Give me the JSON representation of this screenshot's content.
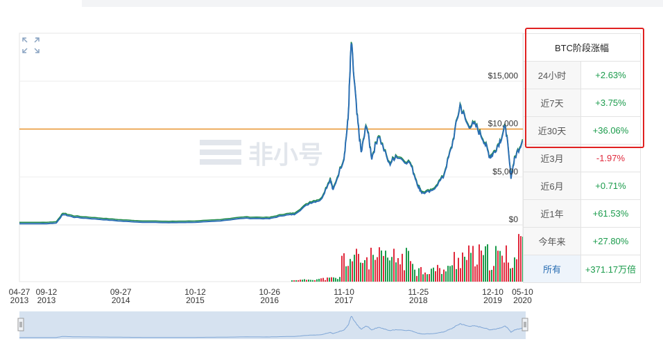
{
  "chart_data": {
    "type": "line",
    "title": "",
    "xlabel": "",
    "ylabel": "",
    "ylim": [
      0,
      20000
    ],
    "y_ticks": [
      "$0",
      "$5,000",
      "$10,000",
      "$15,000"
    ],
    "y_tick_values": [
      0,
      5000,
      10000,
      15000
    ],
    "x_ticks": [
      {
        "label_top": "04-27",
        "label_bottom": "2013",
        "date": "2013-04-27"
      },
      {
        "label_top": "09-12",
        "label_bottom": "2013",
        "date": "2013-09-12"
      },
      {
        "label_top": "09-27",
        "label_bottom": "2014",
        "date": "2014-09-27"
      },
      {
        "label_top": "10-12",
        "label_bottom": "2015",
        "date": "2015-10-12"
      },
      {
        "label_top": "10-26",
        "label_bottom": "2016",
        "date": "2016-10-26"
      },
      {
        "label_top": "11-10",
        "label_bottom": "2017",
        "date": "2017-11-10"
      },
      {
        "label_top": "11-25",
        "label_bottom": "2018",
        "date": "2018-11-25"
      },
      {
        "label_top": "12-10",
        "label_bottom": "2019",
        "date": "2019-12-10"
      },
      {
        "label_top": "05-10",
        "label_bottom": "2020",
        "date": "2020-05-10"
      }
    ],
    "reference_line": {
      "value": 10000,
      "color": "#e8922a"
    },
    "series": [
      {
        "color": "#2a6eb3",
        "x": [
          "2013-04-27",
          "2013-09-12",
          "2013-11-01",
          "2013-12-05",
          "2014-02-01",
          "2014-06-01",
          "2014-09-27",
          "2015-01-15",
          "2015-06-01",
          "2015-10-12",
          "2016-02-01",
          "2016-06-15",
          "2016-10-26",
          "2017-01-05",
          "2017-03-01",
          "2017-05-20",
          "2017-07-15",
          "2017-09-01",
          "2017-09-15",
          "2017-11-10",
          "2017-12-01",
          "2017-12-17",
          "2018-01-15",
          "2018-02-06",
          "2018-03-05",
          "2018-04-01",
          "2018-05-05",
          "2018-06-30",
          "2018-08-01",
          "2018-10-15",
          "2018-11-25",
          "2018-12-15",
          "2019-02-01",
          "2019-04-01",
          "2019-05-15",
          "2019-06-26",
          "2019-08-01",
          "2019-09-15",
          "2019-10-26",
          "2019-11-25",
          "2019-12-10",
          "2020-01-15",
          "2020-02-14",
          "2020-03-12",
          "2020-04-01",
          "2020-05-10"
        ],
        "values": [
          130,
          130,
          200,
          1100,
          800,
          600,
          400,
          280,
          240,
          270,
          400,
          700,
          650,
          1000,
          1100,
          2300,
          2600,
          4800,
          3600,
          7000,
          11000,
          19000,
          11500,
          7500,
          10500,
          7000,
          9400,
          6300,
          7200,
          6400,
          4000,
          3300,
          3500,
          5000,
          8200,
          12500,
          10500,
          10300,
          8800,
          7100,
          7300,
          8700,
          10300,
          5000,
          7000,
          8800
        ]
      }
    ],
    "volume_note": "Volume bars (green/red) shown below price chart",
    "watermark": "非小号"
  },
  "stats_table": {
    "title": "BTC阶段涨幅",
    "rows": [
      {
        "label": "24小时",
        "value": "+2.63%",
        "positive": true
      },
      {
        "label": "近7天",
        "value": "+3.75%",
        "positive": true
      },
      {
        "label": "近30天",
        "value": "+36.06%",
        "positive": true
      },
      {
        "label": "近3月",
        "value": "-1.97%",
        "positive": false
      },
      {
        "label": "近6月",
        "value": "+0.71%",
        "positive": true
      },
      {
        "label": "近1年",
        "value": "+61.53%",
        "positive": true
      },
      {
        "label": "今年来",
        "value": "+27.80%",
        "positive": true
      },
      {
        "label": "所有",
        "value": "+371.17万倍",
        "positive": true
      }
    ]
  },
  "colors": {
    "line": "#2a6eb3",
    "line_shadow": "#1f8a4a",
    "up": "#1a9b4b",
    "down": "#e0293c",
    "highlight": "#e02020",
    "navigator_fill": "#d6e2f0"
  }
}
